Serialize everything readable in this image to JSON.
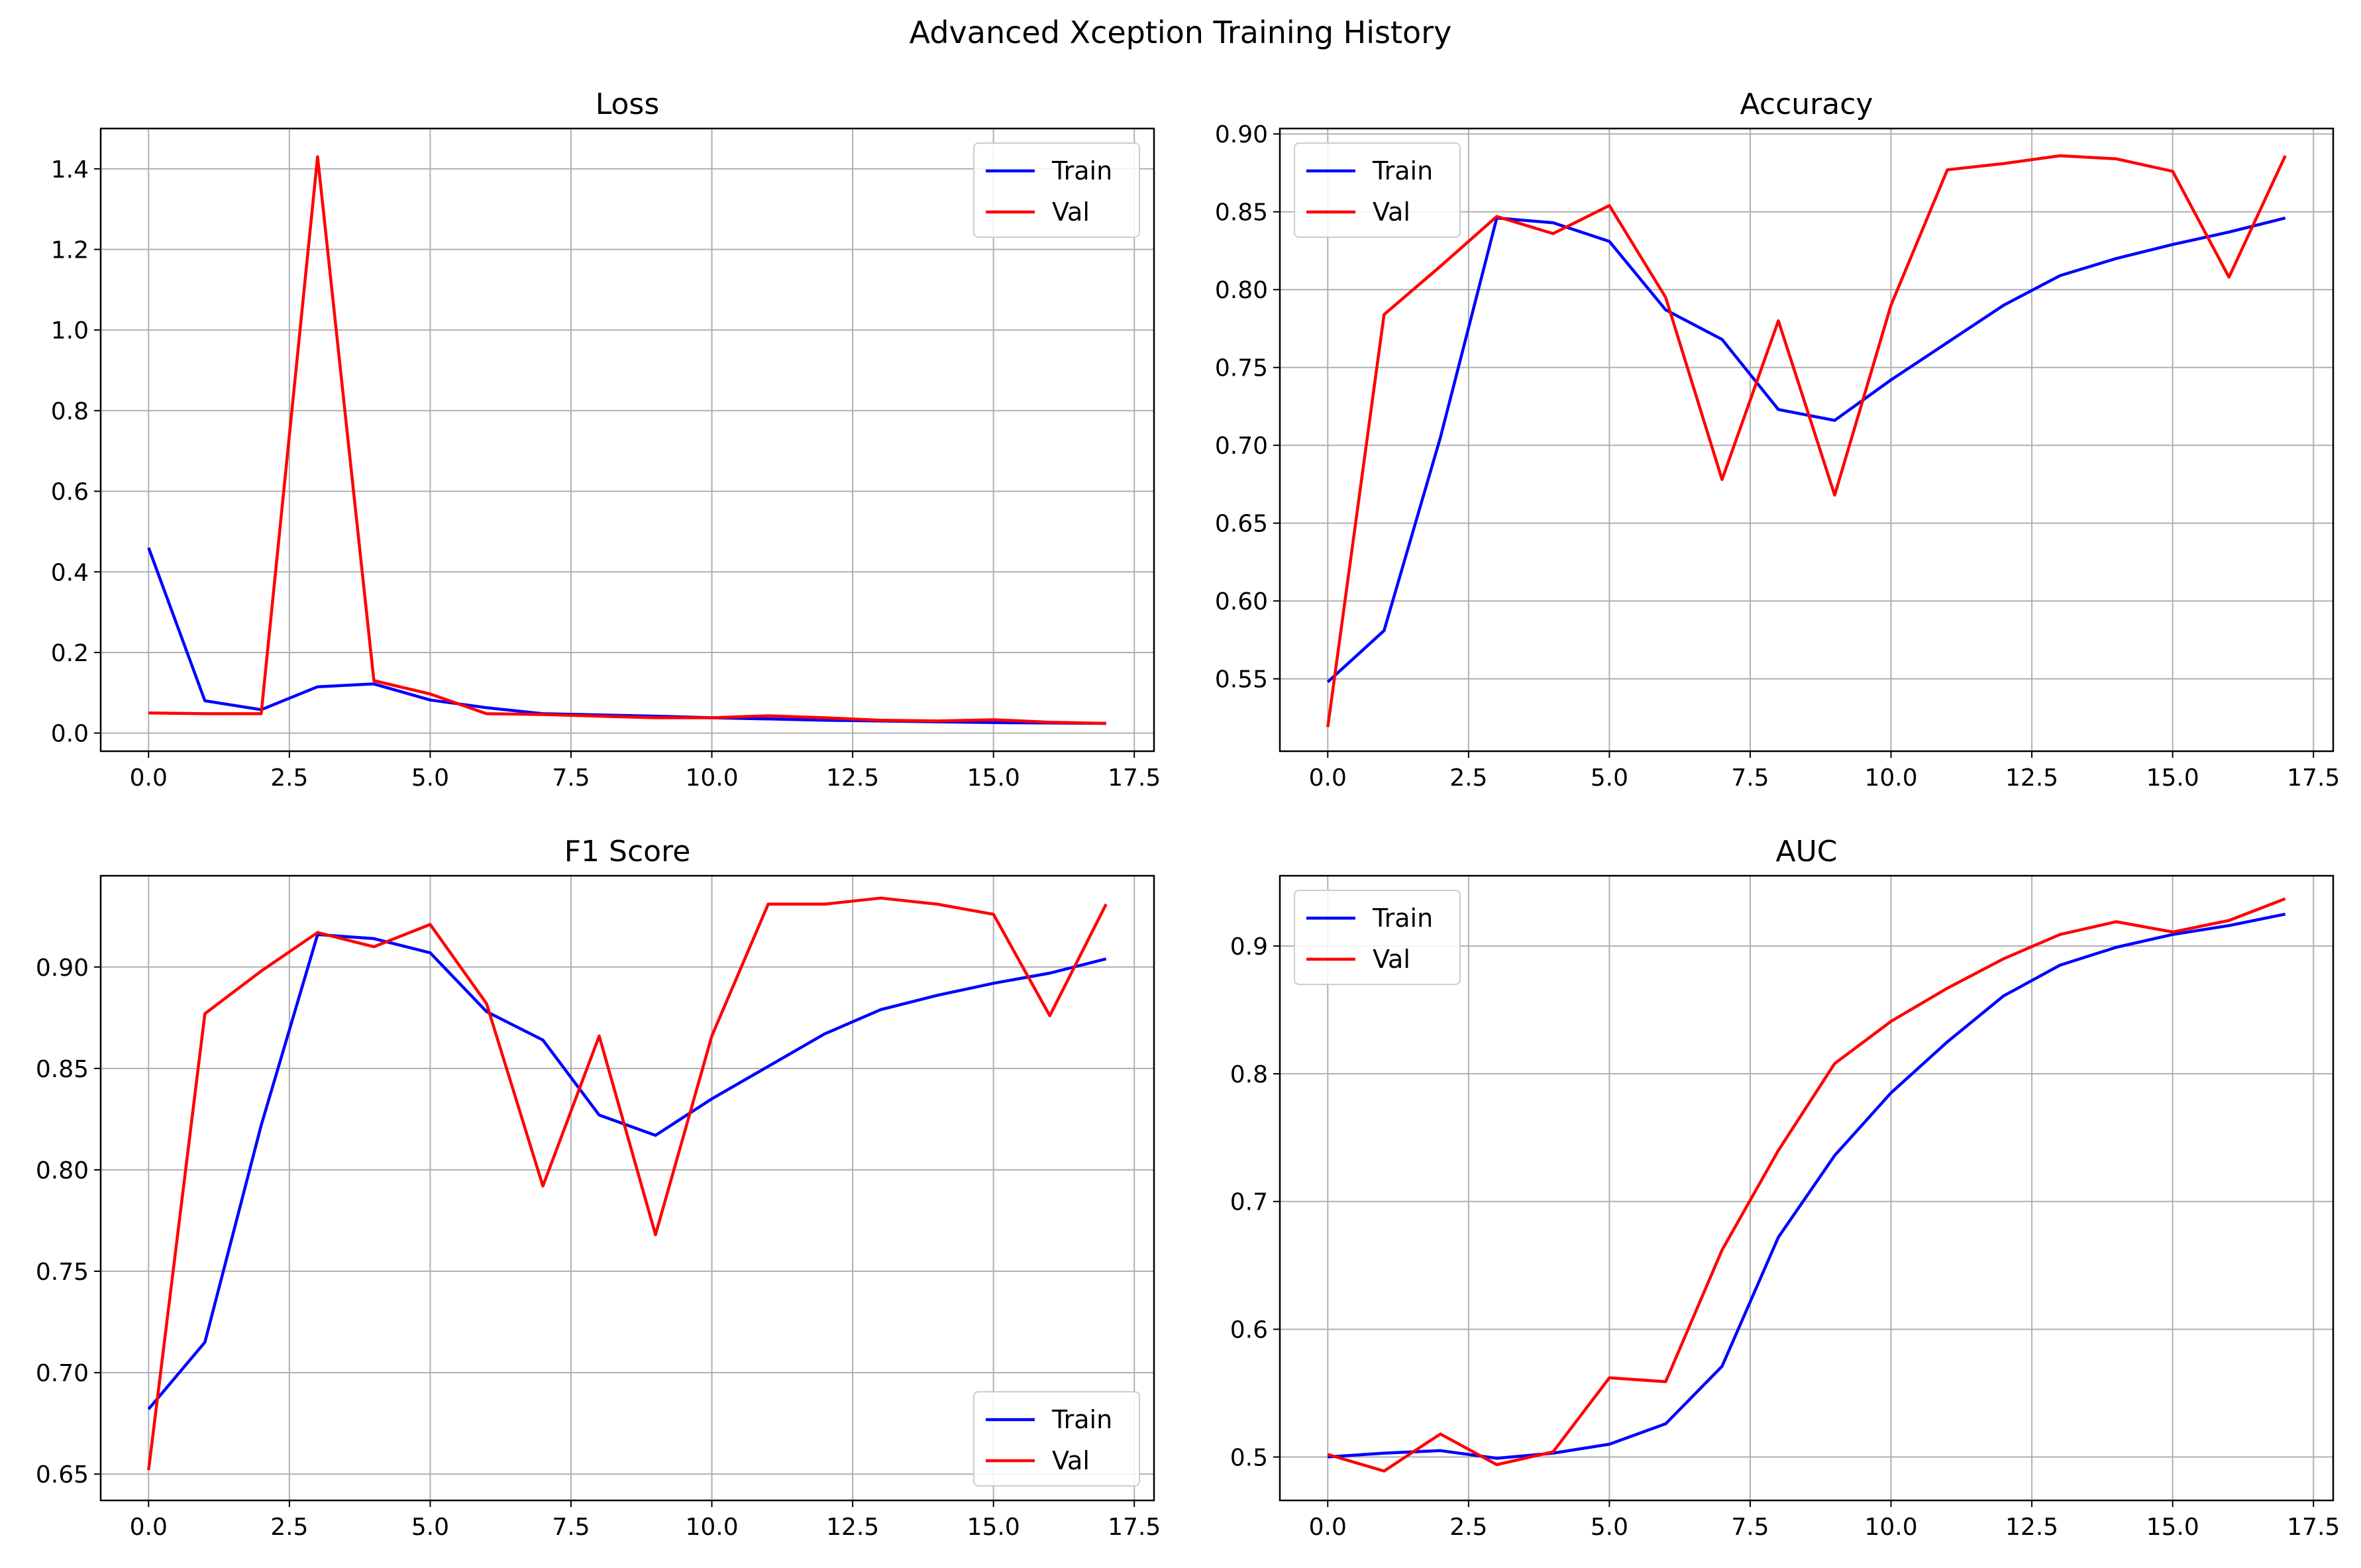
{
  "figure_title": "Advanced Xception Training History",
  "chart_data": [
    {
      "type": "line",
      "title": "Loss",
      "xlabel": "",
      "ylabel": "",
      "x": [
        0,
        1,
        2,
        3,
        4,
        5,
        6,
        7,
        8,
        9,
        10,
        11,
        12,
        13,
        14,
        15,
        16,
        17
      ],
      "xlim": [
        -0.85,
        17.85
      ],
      "ylim": [
        -0.045,
        1.5
      ],
      "xticks": [
        0.0,
        2.5,
        5.0,
        7.5,
        10.0,
        12.5,
        15.0,
        17.5
      ],
      "xtick_labels": [
        "0.0",
        "2.5",
        "5.0",
        "7.5",
        "10.0",
        "12.5",
        "15.0",
        "17.5"
      ],
      "yticks": [
        0.0,
        0.2,
        0.4,
        0.6,
        0.8,
        1.0,
        1.2,
        1.4
      ],
      "ytick_labels": [
        "0.0",
        "0.2",
        "0.4",
        "0.6",
        "0.8",
        "1.0",
        "1.2",
        "1.4"
      ],
      "grid": true,
      "legend_position": "upper right",
      "series": [
        {
          "name": "Train",
          "color": "#0000ff",
          "values": [
            0.46,
            0.08,
            0.058,
            0.115,
            0.122,
            0.082,
            0.063,
            0.048,
            0.045,
            0.042,
            0.038,
            0.035,
            0.032,
            0.03,
            0.028,
            0.026,
            0.025,
            0.024
          ]
        },
        {
          "name": "Val",
          "color": "#ff0000",
          "values": [
            0.05,
            0.048,
            0.048,
            1.43,
            0.13,
            0.097,
            0.048,
            0.046,
            0.042,
            0.038,
            0.038,
            0.043,
            0.038,
            0.032,
            0.03,
            0.033,
            0.027,
            0.024
          ]
        }
      ]
    },
    {
      "type": "line",
      "title": "Accuracy",
      "xlabel": "",
      "ylabel": "",
      "x": [
        0,
        1,
        2,
        3,
        4,
        5,
        6,
        7,
        8,
        9,
        10,
        11,
        12,
        13,
        14,
        15,
        16,
        17
      ],
      "xlim": [
        -0.85,
        17.85
      ],
      "ylim": [
        0.5035,
        0.9035
      ],
      "xticks": [
        0.0,
        2.5,
        5.0,
        7.5,
        10.0,
        12.5,
        15.0,
        17.5
      ],
      "xtick_labels": [
        "0.0",
        "2.5",
        "5.0",
        "7.5",
        "10.0",
        "12.5",
        "15.0",
        "17.5"
      ],
      "yticks": [
        0.55,
        0.6,
        0.65,
        0.7,
        0.75,
        0.8,
        0.85,
        0.9
      ],
      "ytick_labels": [
        "0.55",
        "0.60",
        "0.65",
        "0.70",
        "0.75",
        "0.80",
        "0.85",
        "0.90"
      ],
      "grid": true,
      "legend_position": "upper left",
      "series": [
        {
          "name": "Train",
          "color": "#0000ff",
          "values": [
            0.548,
            0.581,
            0.705,
            0.846,
            0.843,
            0.831,
            0.787,
            0.768,
            0.723,
            0.716,
            0.742,
            0.766,
            0.79,
            0.809,
            0.82,
            0.829,
            0.837,
            0.846
          ]
        },
        {
          "name": "Val",
          "color": "#ff0000",
          "values": [
            0.519,
            0.784,
            0.815,
            0.847,
            0.836,
            0.854,
            0.795,
            0.678,
            0.78,
            0.668,
            0.79,
            0.877,
            0.881,
            0.886,
            0.884,
            0.876,
            0.808,
            0.886
          ]
        }
      ]
    },
    {
      "type": "line",
      "title": "F1 Score",
      "xlabel": "",
      "ylabel": "",
      "x": [
        0,
        1,
        2,
        3,
        4,
        5,
        6,
        7,
        8,
        9,
        10,
        11,
        12,
        13,
        14,
        15,
        16,
        17
      ],
      "xlim": [
        -0.85,
        17.85
      ],
      "ylim": [
        0.637,
        0.945
      ],
      "xticks": [
        0.0,
        2.5,
        5.0,
        7.5,
        10.0,
        12.5,
        15.0,
        17.5
      ],
      "xtick_labels": [
        "0.0",
        "2.5",
        "5.0",
        "7.5",
        "10.0",
        "12.5",
        "15.0",
        "17.5"
      ],
      "yticks": [
        0.65,
        0.7,
        0.75,
        0.8,
        0.85,
        0.9
      ],
      "ytick_labels": [
        "0.65",
        "0.70",
        "0.75",
        "0.80",
        "0.85",
        "0.90"
      ],
      "grid": true,
      "legend_position": "lower right",
      "series": [
        {
          "name": "Train",
          "color": "#0000ff",
          "values": [
            0.682,
            0.715,
            0.822,
            0.916,
            0.914,
            0.907,
            0.878,
            0.864,
            0.827,
            0.817,
            0.835,
            0.851,
            0.867,
            0.879,
            0.886,
            0.892,
            0.897,
            0.904
          ]
        },
        {
          "name": "Val",
          "color": "#ff0000",
          "values": [
            0.652,
            0.877,
            0.898,
            0.917,
            0.91,
            0.921,
            0.882,
            0.792,
            0.866,
            0.768,
            0.866,
            0.931,
            0.931,
            0.934,
            0.931,
            0.926,
            0.876,
            0.931
          ]
        }
      ]
    },
    {
      "type": "line",
      "title": "AUC",
      "xlabel": "",
      "ylabel": "",
      "x": [
        0,
        1,
        2,
        3,
        4,
        5,
        6,
        7,
        8,
        9,
        10,
        11,
        12,
        13,
        14,
        15,
        16,
        17
      ],
      "xlim": [
        -0.85,
        17.85
      ],
      "ylim": [
        0.466,
        0.955
      ],
      "xticks": [
        0.0,
        2.5,
        5.0,
        7.5,
        10.0,
        12.5,
        15.0,
        17.5
      ],
      "xtick_labels": [
        "0.0",
        "2.5",
        "5.0",
        "7.5",
        "10.0",
        "12.5",
        "15.0",
        "17.5"
      ],
      "yticks": [
        0.5,
        0.6,
        0.7,
        0.8,
        0.9
      ],
      "ytick_labels": [
        "0.5",
        "0.6",
        "0.7",
        "0.8",
        "0.9"
      ],
      "grid": true,
      "legend_position": "upper left",
      "series": [
        {
          "name": "Train",
          "color": "#0000ff",
          "values": [
            0.5,
            0.503,
            0.505,
            0.499,
            0.503,
            0.51,
            0.526,
            0.571,
            0.672,
            0.736,
            0.785,
            0.825,
            0.861,
            0.885,
            0.899,
            0.909,
            0.916,
            0.925
          ]
        },
        {
          "name": "Val",
          "color": "#ff0000",
          "values": [
            0.502,
            0.489,
            0.518,
            0.494,
            0.504,
            0.562,
            0.559,
            0.662,
            0.74,
            0.808,
            0.841,
            0.867,
            0.89,
            0.909,
            0.919,
            0.911,
            0.92,
            0.937
          ]
        }
      ]
    }
  ]
}
